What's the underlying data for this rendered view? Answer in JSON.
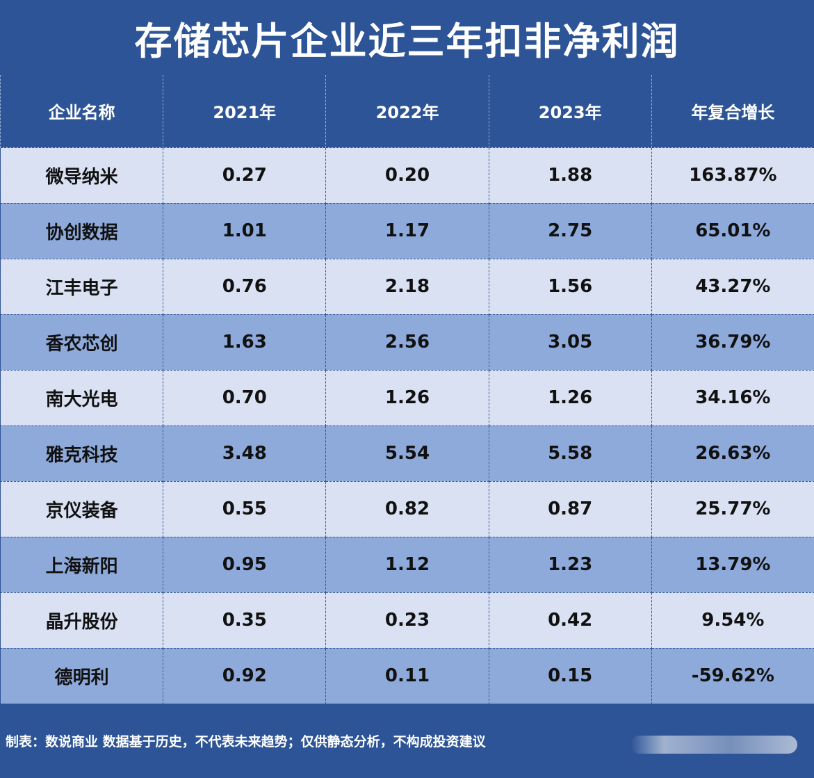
{
  "chart_data": {
    "type": "table",
    "title": "存储芯片企业近三年扣非净利润",
    "columns": [
      "企业名称",
      "2021年",
      "2022年",
      "2023年",
      "年复合增长"
    ],
    "rows": [
      [
        "微导纳米",
        "0.27",
        "0.20",
        "1.88",
        "163.87%"
      ],
      [
        "协创数据",
        "1.01",
        "1.17",
        "2.75",
        "65.01%"
      ],
      [
        "江丰电子",
        "0.76",
        "2.18",
        "1.56",
        "43.27%"
      ],
      [
        "香农芯创",
        "1.63",
        "2.56",
        "3.05",
        "36.79%"
      ],
      [
        "南大光电",
        "0.70",
        "1.26",
        "1.26",
        "34.16%"
      ],
      [
        "雅克科技",
        "3.48",
        "5.54",
        "5.58",
        "26.63%"
      ],
      [
        "京仪装备",
        "0.55",
        "0.82",
        "0.87",
        "25.77%"
      ],
      [
        "上海新阳",
        "0.95",
        "1.12",
        "1.23",
        "13.79%"
      ],
      [
        "晶升股份",
        "0.35",
        "0.23",
        "0.42",
        "9.54%"
      ],
      [
        "德明利",
        "0.92",
        "0.11",
        "0.15",
        "-59.62%"
      ]
    ]
  },
  "footer": {
    "source_note": "制表：数说商业 数据基于历史，不代表未来趋势；仅供静态分析，不构成投资建议"
  },
  "colors": {
    "background": "#2d5496",
    "row_light": "#d9e1f2",
    "row_dark": "#8eaadb",
    "header_text": "#ffffff",
    "cell_text": "#111111"
  }
}
